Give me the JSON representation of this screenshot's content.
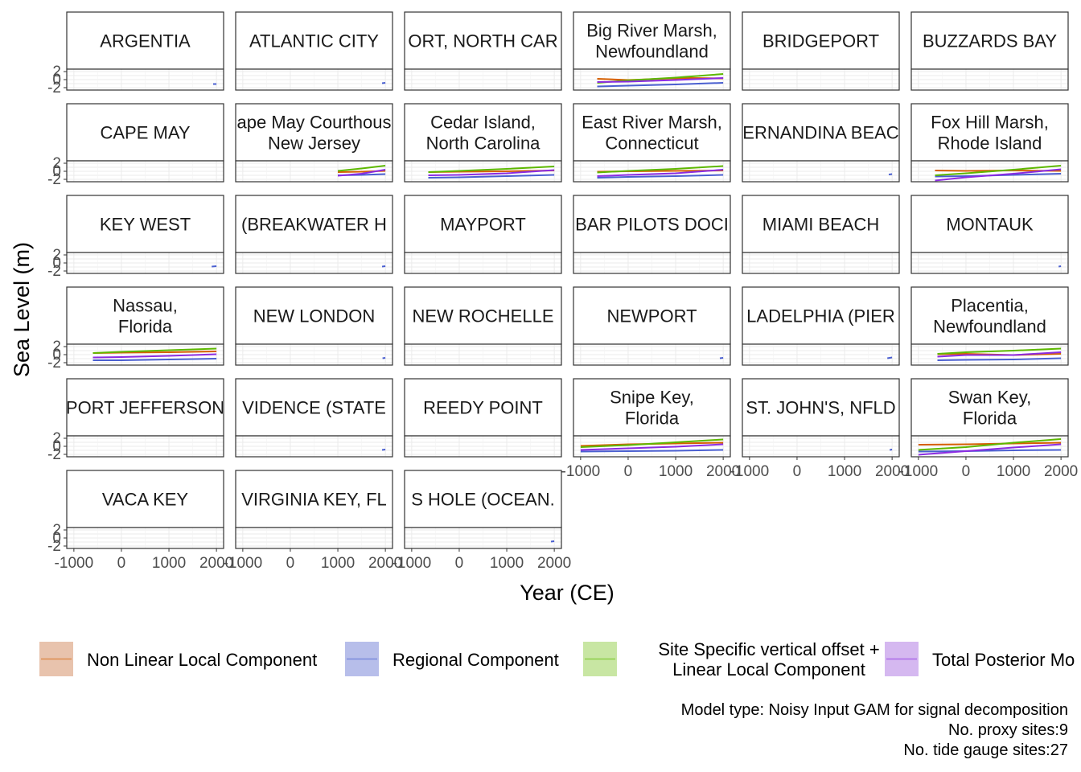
{
  "chart_data": {
    "type": "line",
    "xlabel": "Year (CE)",
    "ylabel": "Sea Level (m)",
    "xlim": [
      -1150,
      2150
    ],
    "ylim": [
      -2.6,
      2.6
    ],
    "x_ticks": [
      -1000,
      0,
      1000,
      2000
    ],
    "x_tick_labels": [
      "-1000",
      "0",
      "1000",
      "2000"
    ],
    "y_ticks": [
      -2,
      0,
      2
    ],
    "y_tick_labels": [
      "-2",
      "0",
      "2"
    ],
    "grid": true,
    "legend_position": "bottom",
    "series": [
      {
        "key": "nonlinear",
        "name": "Non Linear Local Component",
        "color": "#D55E00",
        "fill": "#E8C3AD"
      },
      {
        "key": "regional",
        "name": "Regional Component",
        "color": "#4A5FD0",
        "fill": "#B7BEEA"
      },
      {
        "key": "linear",
        "name": "Site Specific vertical offset +\nLinear Local Component",
        "color": "#5DB800",
        "fill": "#C8E6A3"
      },
      {
        "key": "total",
        "name": "Total Posterior Mo",
        "color": "#8B2BE2",
        "fill": "#D5B8F0"
      }
    ],
    "panels": [
      {
        "label": "ARGENTIA",
        "lines": {
          "regional": [
            [
              1930,
              -1.1
            ],
            [
              2000,
              -1.1
            ]
          ]
        }
      },
      {
        "label": "ATLANTIC CITY",
        "lines": {
          "regional": [
            [
              1930,
              -0.9
            ],
            [
              2000,
              -0.8
            ]
          ]
        }
      },
      {
        "label": "ORT, NORTH CAR",
        "lines": {}
      },
      {
        "label": "Big River Marsh,\nNewfoundland",
        "lines": {
          "nonlinear": [
            [
              -650,
              0.2
            ],
            [
              0,
              -0.1
            ],
            [
              700,
              0.2
            ],
            [
              1300,
              0.4
            ],
            [
              2000,
              0.3
            ]
          ],
          "linear": [
            [
              -650,
              -0.8
            ],
            [
              0,
              -0.2
            ],
            [
              1000,
              0.5
            ],
            [
              2000,
              1.4
            ]
          ],
          "regional": [
            [
              -650,
              -1.7
            ],
            [
              0,
              -1.5
            ],
            [
              1000,
              -1.2
            ],
            [
              2000,
              -0.8
            ]
          ],
          "total": [
            [
              -650,
              -0.6
            ],
            [
              0,
              -0.5
            ],
            [
              1000,
              -0.1
            ],
            [
              2000,
              0.4
            ]
          ]
        }
      },
      {
        "label": "BRIDGEPORT",
        "lines": {}
      },
      {
        "label": "BUZZARDS BAY",
        "lines": {}
      },
      {
        "label": "CAPE MAY",
        "lines": {}
      },
      {
        "label": "ape May Courthous\nNew Jersey",
        "lines": {
          "nonlinear": [
            [
              1000,
              -0.2
            ],
            [
              1500,
              -0.1
            ],
            [
              2000,
              0.1
            ]
          ],
          "linear": [
            [
              1000,
              0.1
            ],
            [
              1500,
              0.7
            ],
            [
              2000,
              1.4
            ]
          ],
          "regional": [
            [
              1000,
              -1.0
            ],
            [
              1500,
              -0.9
            ],
            [
              2000,
              -0.7
            ]
          ],
          "total": [
            [
              1000,
              -1.1
            ],
            [
              1500,
              -0.6
            ],
            [
              2000,
              0.4
            ]
          ]
        }
      },
      {
        "label": "Cedar Island,\nNorth Carolina",
        "lines": {
          "nonlinear": [
            [
              -650,
              -0.2
            ],
            [
              0,
              -0.1
            ],
            [
              1000,
              0.0
            ],
            [
              2000,
              0.2
            ]
          ],
          "linear": [
            [
              -650,
              -0.2
            ],
            [
              0,
              0.1
            ],
            [
              1000,
              0.6
            ],
            [
              2000,
              1.2
            ]
          ],
          "regional": [
            [
              -650,
              -1.6
            ],
            [
              0,
              -1.5
            ],
            [
              1000,
              -1.2
            ],
            [
              2000,
              -0.9
            ]
          ],
          "total": [
            [
              -650,
              -1.0
            ],
            [
              0,
              -0.9
            ],
            [
              1000,
              -0.5
            ],
            [
              2000,
              0.3
            ]
          ]
        }
      },
      {
        "label": "East River Marsh,\nConnecticut",
        "lines": {
          "nonlinear": [
            [
              -650,
              -0.1
            ],
            [
              0,
              0.0
            ],
            [
              1000,
              0.1
            ],
            [
              2000,
              0.2
            ]
          ],
          "linear": [
            [
              -650,
              -0.3
            ],
            [
              0,
              0.1
            ],
            [
              1000,
              0.6
            ],
            [
              2000,
              1.3
            ]
          ],
          "regional": [
            [
              -650,
              -1.6
            ],
            [
              0,
              -1.4
            ],
            [
              1000,
              -1.2
            ],
            [
              2000,
              -0.9
            ]
          ],
          "total": [
            [
              -650,
              -1.2
            ],
            [
              0,
              -0.9
            ],
            [
              1000,
              -0.5
            ],
            [
              2000,
              0.4
            ]
          ]
        }
      },
      {
        "label": "ERNANDINA BEAC",
        "lines": {
          "regional": [
            [
              1930,
              -0.8
            ],
            [
              2000,
              -0.7
            ]
          ]
        }
      },
      {
        "label": "Fox Hill Marsh,\nRhode Island",
        "lines": {
          "nonlinear": [
            [
              -650,
              0.2
            ],
            [
              0,
              0.1
            ],
            [
              1000,
              0.2
            ],
            [
              2000,
              0.1
            ]
          ],
          "linear": [
            [
              -650,
              -1.0
            ],
            [
              0,
              -0.5
            ],
            [
              1000,
              0.4
            ],
            [
              2000,
              1.4
            ]
          ],
          "regional": [
            [
              -650,
              -1.3
            ],
            [
              0,
              -1.2
            ],
            [
              1000,
              -0.9
            ],
            [
              2000,
              -0.6
            ]
          ],
          "total": [
            [
              -650,
              -2.3
            ],
            [
              0,
              -1.5
            ],
            [
              1000,
              -0.6
            ],
            [
              2000,
              0.5
            ]
          ]
        }
      },
      {
        "label": "KEY WEST",
        "lines": {
          "regional": [
            [
              1900,
              -0.9
            ],
            [
              2000,
              -0.8
            ]
          ]
        }
      },
      {
        "label": "(BREAKWATER H",
        "lines": {
          "regional": [
            [
              1930,
              -0.9
            ],
            [
              2000,
              -0.8
            ]
          ]
        }
      },
      {
        "label": "MAYPORT",
        "lines": {}
      },
      {
        "label": "BAR PILOTS DOCI",
        "lines": {}
      },
      {
        "label": "MIAMI BEACH",
        "lines": {}
      },
      {
        "label": "MONTAUK",
        "lines": {
          "regional": [
            [
              1950,
              -0.9
            ],
            [
              2000,
              -0.8
            ]
          ]
        }
      },
      {
        "label": "Nassau,\nFlorida",
        "lines": {
          "nonlinear": [
            [
              -600,
              0.4
            ],
            [
              0,
              0.5
            ],
            [
              1000,
              0.6
            ],
            [
              2000,
              0.8
            ]
          ],
          "linear": [
            [
              -600,
              0.4
            ],
            [
              0,
              0.7
            ],
            [
              1000,
              1.1
            ],
            [
              2000,
              1.5
            ]
          ],
          "regional": [
            [
              -600,
              -1.4
            ],
            [
              0,
              -1.4
            ],
            [
              1000,
              -1.2
            ],
            [
              2000,
              -1.0
            ]
          ],
          "total": [
            [
              -600,
              -0.7
            ],
            [
              0,
              -0.6
            ],
            [
              1000,
              -0.3
            ],
            [
              2000,
              0.1
            ]
          ]
        }
      },
      {
        "label": "NEW LONDON",
        "lines": {
          "regional": [
            [
              1940,
              -0.9
            ],
            [
              2000,
              -0.8
            ]
          ]
        }
      },
      {
        "label": "NEW ROCHELLE",
        "lines": {}
      },
      {
        "label": "NEWPORT",
        "lines": {
          "regional": [
            [
              1930,
              -0.9
            ],
            [
              2000,
              -0.8
            ]
          ]
        }
      },
      {
        "label": "LADELPHIA (PIER",
        "lines": {
          "regional": [
            [
              1900,
              -0.9
            ],
            [
              2000,
              -0.7
            ]
          ]
        }
      },
      {
        "label": "Placentia,\nNewfoundland",
        "lines": {
          "nonlinear": [
            [
              -600,
              0.1
            ],
            [
              0,
              0.2
            ],
            [
              1000,
              -0.1
            ],
            [
              2000,
              0.2
            ]
          ],
          "linear": [
            [
              -600,
              0.2
            ],
            [
              0,
              0.6
            ],
            [
              1000,
              1.0
            ],
            [
              2000,
              1.5
            ]
          ],
          "regional": [
            [
              -600,
              -1.4
            ],
            [
              0,
              -1.3
            ],
            [
              1000,
              -1.2
            ],
            [
              2000,
              -0.9
            ]
          ],
          "total": [
            [
              -600,
              -0.5
            ],
            [
              0,
              -0.1
            ],
            [
              1000,
              -0.1
            ],
            [
              2000,
              0.6
            ]
          ]
        }
      },
      {
        "label": "PORT JEFFERSON",
        "lines": {}
      },
      {
        "label": "VIDENCE (STATE",
        "lines": {
          "regional": [
            [
              1930,
              -0.9
            ],
            [
              2000,
              -0.8
            ]
          ]
        }
      },
      {
        "label": "REEDY POINT",
        "lines": {}
      },
      {
        "label": "Snipe Key,\nFlorida",
        "lines": {
          "nonlinear": [
            [
              -1000,
              0.1
            ],
            [
              0,
              0.5
            ],
            [
              1000,
              0.7
            ],
            [
              2000,
              0.9
            ]
          ],
          "linear": [
            [
              -1000,
              -0.2
            ],
            [
              0,
              0.3
            ],
            [
              1000,
              1.0
            ],
            [
              2000,
              1.7
            ]
          ],
          "regional": [
            [
              -1000,
              -1.3
            ],
            [
              0,
              -1.2
            ],
            [
              1000,
              -1.1
            ],
            [
              2000,
              -0.9
            ]
          ],
          "total": [
            [
              -1000,
              -0.9
            ],
            [
              0,
              -0.5
            ],
            [
              1000,
              -0.1
            ],
            [
              2000,
              0.5
            ]
          ]
        }
      },
      {
        "label": "ST. JOHN'S, NFLD",
        "lines": {
          "regional": [
            [
              1950,
              -0.9
            ],
            [
              2000,
              -0.8
            ]
          ]
        }
      },
      {
        "label": "Swan Key,\nFlorida",
        "lines": {
          "nonlinear": [
            [
              -1000,
              0.4
            ],
            [
              0,
              0.5
            ],
            [
              1000,
              0.7
            ],
            [
              2000,
              0.9
            ]
          ],
          "linear": [
            [
              -1000,
              -0.9
            ],
            [
              0,
              -0.2
            ],
            [
              1000,
              0.9
            ],
            [
              2000,
              1.8
            ]
          ],
          "regional": [
            [
              -1000,
              -1.3
            ],
            [
              0,
              -1.2
            ],
            [
              1000,
              -1.0
            ],
            [
              2000,
              -0.9
            ]
          ],
          "total": [
            [
              -1000,
              -2.1
            ],
            [
              0,
              -1.2
            ],
            [
              1000,
              -0.3
            ],
            [
              2000,
              0.5
            ]
          ]
        }
      },
      {
        "label": "VACA KEY",
        "lines": {}
      },
      {
        "label": "VIRGINIA KEY, FL",
        "lines": {}
      },
      {
        "label": "S HOLE (OCEAN.",
        "lines": {
          "regional": [
            [
              1930,
              -0.9
            ],
            [
              2000,
              -0.8
            ]
          ]
        }
      }
    ],
    "caption_lines": [
      "Model type: Noisy Input GAM for signal decomposition",
      "No. proxy sites:9",
      "No. tide gauge sites:27"
    ]
  }
}
